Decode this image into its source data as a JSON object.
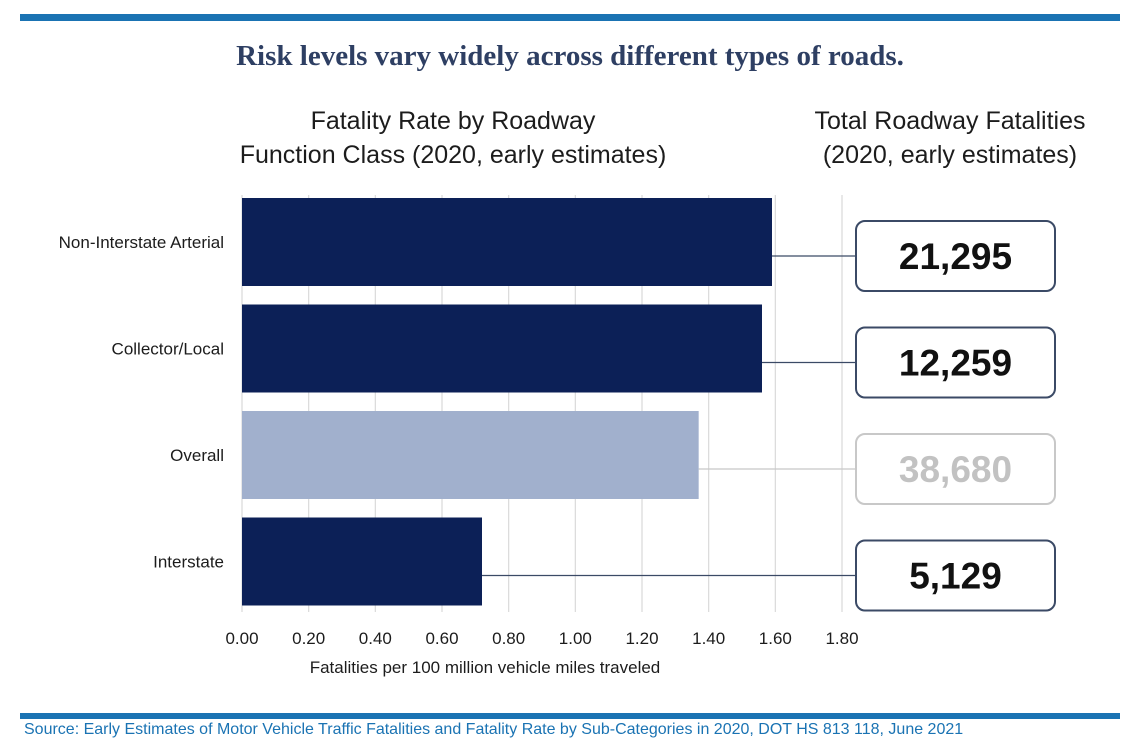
{
  "headline": "Risk levels vary widely across different types of roads.",
  "chart_title_lines": [
    "Fatality Rate by Roadway",
    "Function Class (2020, early estimates)"
  ],
  "totals_title_lines": [
    "Total Roadway Fatalities",
    "(2020, early estimates)"
  ],
  "source": "Source: Early Estimates of Motor Vehicle Traffic Fatalities and Fatality Rate by Sub-Categories in 2020, DOT HS 813 118, June 2021",
  "colors": {
    "accent_rule": "#1a73b3",
    "headline": "#2e3f63",
    "bar_dark": "#0c2057",
    "bar_light": "#a1b0cd",
    "box_border_dark": "#3b4a66",
    "box_border_light": "#c8c8c8",
    "total_text_dark": "#111111",
    "total_text_light": "#c2c2c2",
    "source_text": "#1a73b3",
    "grid": "#d9d9d9"
  },
  "chart_data": {
    "type": "bar",
    "orientation": "horizontal",
    "title": "Fatality Rate by Roadway Function Class (2020, early estimates)",
    "xlabel": "Fatalities per 100 million vehicle miles traveled",
    "ylabel": "",
    "xlim": [
      0,
      1.8
    ],
    "x_ticks": [
      "0.00",
      "0.20",
      "0.40",
      "0.60",
      "0.80",
      "1.00",
      "1.20",
      "1.40",
      "1.60",
      "1.80"
    ],
    "x_tick_values": [
      0,
      0.2,
      0.4,
      0.6,
      0.8,
      1.0,
      1.2,
      1.4,
      1.6,
      1.8
    ],
    "grid": true,
    "categories": [
      "Non-Interstate Arterial",
      "Collector/Local",
      "Overall",
      "Interstate"
    ],
    "values": [
      1.59,
      1.56,
      1.37,
      0.72
    ],
    "highlight": [
      false,
      false,
      true,
      false
    ],
    "totals_title": "Total Roadway Fatalities (2020, early estimates)",
    "totals": [
      "21,295",
      "12,259",
      "38,680",
      "5,129"
    ]
  }
}
